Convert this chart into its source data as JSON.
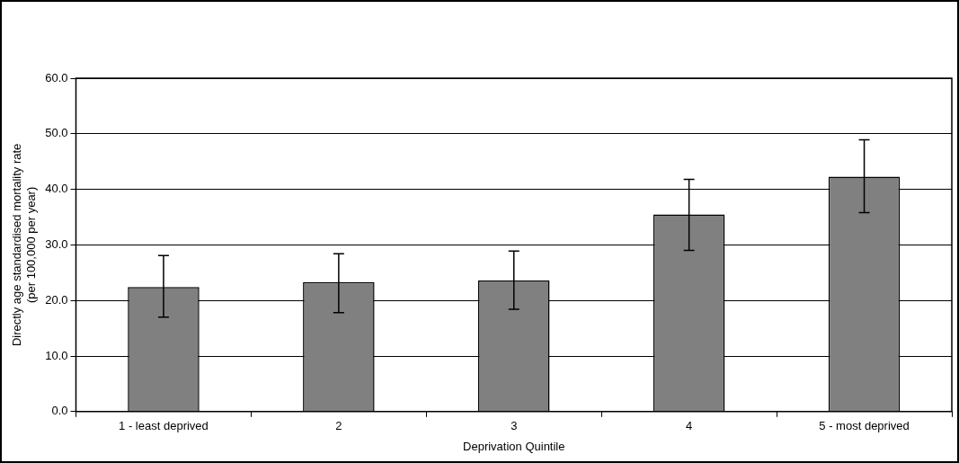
{
  "chart_data": {
    "type": "bar",
    "xlabel": "Deprivation Quintile",
    "ylabel": "Directly age standardised mortality rate\n(per 100,000 per year)",
    "categories": [
      "1 - least deprived",
      "2",
      "3",
      "4",
      "5 - most deprived"
    ],
    "values": [
      22.4,
      23.3,
      23.6,
      35.5,
      42.3
    ],
    "errors": [
      [
        17.0,
        28.1
      ],
      [
        17.8,
        28.4
      ],
      [
        18.4,
        28.9
      ],
      [
        29.0,
        41.8
      ],
      [
        35.8,
        48.9
      ]
    ],
    "color": "#808080",
    "ylim": [
      0,
      60
    ],
    "yticks": [
      {
        "value": 0,
        "label": "0.0"
      },
      {
        "value": 10,
        "label": "10.0"
      },
      {
        "value": 20,
        "label": "20.0"
      },
      {
        "value": 30,
        "label": "30.0"
      },
      {
        "value": 40,
        "label": "40.0"
      },
      {
        "value": 50,
        "label": "50.0"
      },
      {
        "value": 60,
        "label": "60.0"
      }
    ],
    "grid": "y",
    "legend": false
  }
}
